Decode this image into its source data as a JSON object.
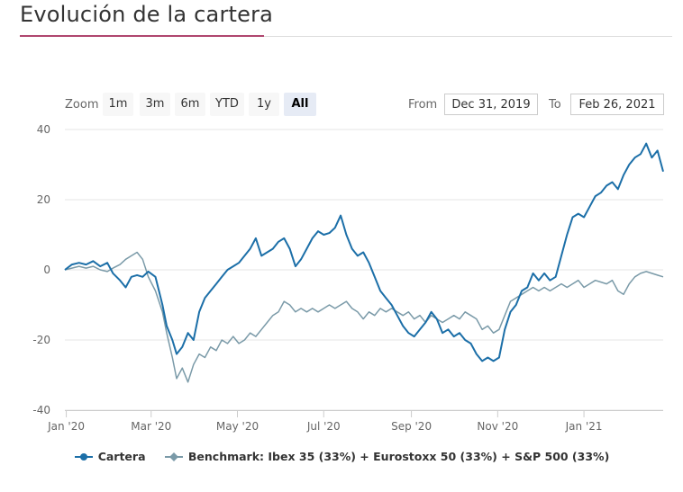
{
  "header": {
    "title": "Evolución de la cartera"
  },
  "range_selector": {
    "zoom_label": "Zoom",
    "buttons": [
      "1m",
      "3m",
      "6m",
      "YTD",
      "1y",
      "All"
    ],
    "active": "All",
    "from_label": "From",
    "from_value": "Dec 31, 2019",
    "to_label": "To",
    "to_value": "Feb 26, 2021"
  },
  "colors": {
    "cartera": "#1c6fa8",
    "benchmark": "#7a9aa8",
    "accent": "#b0466e",
    "grid": "#e6e6e6"
  },
  "chart_data": {
    "type": "line",
    "ylim": [
      -40,
      40
    ],
    "y_ticks": [
      -40,
      -20,
      0,
      20,
      40
    ],
    "x_ticks": [
      "Jan '20",
      "Mar '20",
      "May '20",
      "Jul '20",
      "Sep '20",
      "Nov '20",
      "Jan '21"
    ],
    "x_tick_dates": [
      "2020-01-01",
      "2020-03-01",
      "2020-05-01",
      "2020-07-01",
      "2020-09-01",
      "2020-11-01",
      "2021-01-01"
    ],
    "x_range": [
      "2019-12-31",
      "2021-02-26"
    ],
    "grid": true,
    "legend_position": "bottom",
    "series": [
      {
        "name": "Cartera",
        "points": [
          [
            "2019-12-31",
            0
          ],
          [
            "2020-01-05",
            1.5
          ],
          [
            "2020-01-10",
            2
          ],
          [
            "2020-01-15",
            1.5
          ],
          [
            "2020-01-20",
            2.5
          ],
          [
            "2020-01-25",
            1
          ],
          [
            "2020-01-30",
            2
          ],
          [
            "2020-02-03",
            -1
          ],
          [
            "2020-02-08",
            -3
          ],
          [
            "2020-02-12",
            -5
          ],
          [
            "2020-02-16",
            -2
          ],
          [
            "2020-02-20",
            -1.5
          ],
          [
            "2020-02-24",
            -2
          ],
          [
            "2020-02-28",
            -0.5
          ],
          [
            "2020-03-04",
            -2
          ],
          [
            "2020-03-09",
            -10
          ],
          [
            "2020-03-12",
            -16
          ],
          [
            "2020-03-16",
            -20
          ],
          [
            "2020-03-19",
            -24
          ],
          [
            "2020-03-23",
            -22
          ],
          [
            "2020-03-27",
            -18
          ],
          [
            "2020-03-31",
            -20
          ],
          [
            "2020-04-04",
            -12
          ],
          [
            "2020-04-08",
            -8
          ],
          [
            "2020-04-12",
            -6
          ],
          [
            "2020-04-16",
            -4
          ],
          [
            "2020-04-20",
            -2
          ],
          [
            "2020-04-24",
            0
          ],
          [
            "2020-04-28",
            1
          ],
          [
            "2020-05-02",
            2
          ],
          [
            "2020-05-06",
            4
          ],
          [
            "2020-05-10",
            6
          ],
          [
            "2020-05-14",
            9
          ],
          [
            "2020-05-18",
            4
          ],
          [
            "2020-05-22",
            5
          ],
          [
            "2020-05-26",
            6
          ],
          [
            "2020-05-30",
            8
          ],
          [
            "2020-06-03",
            9
          ],
          [
            "2020-06-07",
            6
          ],
          [
            "2020-06-11",
            1
          ],
          [
            "2020-06-15",
            3
          ],
          [
            "2020-06-19",
            6
          ],
          [
            "2020-06-23",
            9
          ],
          [
            "2020-06-27",
            11
          ],
          [
            "2020-07-01",
            10
          ],
          [
            "2020-07-05",
            10.5
          ],
          [
            "2020-07-09",
            12
          ],
          [
            "2020-07-13",
            15.5
          ],
          [
            "2020-07-17",
            10
          ],
          [
            "2020-07-21",
            6
          ],
          [
            "2020-07-25",
            4
          ],
          [
            "2020-07-29",
            5
          ],
          [
            "2020-08-02",
            2
          ],
          [
            "2020-08-06",
            -2
          ],
          [
            "2020-08-10",
            -6
          ],
          [
            "2020-08-14",
            -8
          ],
          [
            "2020-08-18",
            -10
          ],
          [
            "2020-08-22",
            -13
          ],
          [
            "2020-08-26",
            -16
          ],
          [
            "2020-08-30",
            -18
          ],
          [
            "2020-09-03",
            -19
          ],
          [
            "2020-09-07",
            -17
          ],
          [
            "2020-09-11",
            -15
          ],
          [
            "2020-09-15",
            -12
          ],
          [
            "2020-09-19",
            -14
          ],
          [
            "2020-09-23",
            -18
          ],
          [
            "2020-09-27",
            -17
          ],
          [
            "2020-10-01",
            -19
          ],
          [
            "2020-10-05",
            -18
          ],
          [
            "2020-10-09",
            -20
          ],
          [
            "2020-10-13",
            -21
          ],
          [
            "2020-10-17",
            -24
          ],
          [
            "2020-10-21",
            -26
          ],
          [
            "2020-10-25",
            -25
          ],
          [
            "2020-10-29",
            -26
          ],
          [
            "2020-11-02",
            -25
          ],
          [
            "2020-11-06",
            -17
          ],
          [
            "2020-11-10",
            -12
          ],
          [
            "2020-11-14",
            -10
          ],
          [
            "2020-11-18",
            -6
          ],
          [
            "2020-11-22",
            -5
          ],
          [
            "2020-11-26",
            -1
          ],
          [
            "2020-11-30",
            -3
          ],
          [
            "2020-12-04",
            -1
          ],
          [
            "2020-12-08",
            -3
          ],
          [
            "2020-12-12",
            -2
          ],
          [
            "2020-12-16",
            4
          ],
          [
            "2020-12-20",
            10
          ],
          [
            "2020-12-24",
            15
          ],
          [
            "2020-12-28",
            16
          ],
          [
            "2021-01-01",
            15
          ],
          [
            "2021-01-05",
            18
          ],
          [
            "2021-01-09",
            21
          ],
          [
            "2021-01-13",
            22
          ],
          [
            "2021-01-17",
            24
          ],
          [
            "2021-01-21",
            25
          ],
          [
            "2021-01-25",
            23
          ],
          [
            "2021-01-29",
            27
          ],
          [
            "2021-02-02",
            30
          ],
          [
            "2021-02-06",
            32
          ],
          [
            "2021-02-10",
            33
          ],
          [
            "2021-02-14",
            36
          ],
          [
            "2021-02-18",
            32
          ],
          [
            "2021-02-22",
            34
          ],
          [
            "2021-02-26",
            28
          ]
        ]
      },
      {
        "name": "Benchmark: Ibex 35 (33%) + Eurostoxx 50 (33%) + S&P 500 (33%)",
        "points": [
          [
            "2019-12-31",
            0
          ],
          [
            "2020-01-05",
            0.5
          ],
          [
            "2020-01-10",
            1
          ],
          [
            "2020-01-15",
            0.5
          ],
          [
            "2020-01-20",
            1
          ],
          [
            "2020-01-25",
            0
          ],
          [
            "2020-01-30",
            -0.5
          ],
          [
            "2020-02-03",
            0.5
          ],
          [
            "2020-02-08",
            1.5
          ],
          [
            "2020-02-12",
            3
          ],
          [
            "2020-02-16",
            4
          ],
          [
            "2020-02-20",
            5
          ],
          [
            "2020-02-24",
            3
          ],
          [
            "2020-02-28",
            -2
          ],
          [
            "2020-03-04",
            -6
          ],
          [
            "2020-03-09",
            -12
          ],
          [
            "2020-03-12",
            -18
          ],
          [
            "2020-03-16",
            -25
          ],
          [
            "2020-03-19",
            -31
          ],
          [
            "2020-03-23",
            -28
          ],
          [
            "2020-03-27",
            -32
          ],
          [
            "2020-03-31",
            -27
          ],
          [
            "2020-04-04",
            -24
          ],
          [
            "2020-04-08",
            -25
          ],
          [
            "2020-04-12",
            -22
          ],
          [
            "2020-04-16",
            -23
          ],
          [
            "2020-04-20",
            -20
          ],
          [
            "2020-04-24",
            -21
          ],
          [
            "2020-04-28",
            -19
          ],
          [
            "2020-05-02",
            -21
          ],
          [
            "2020-05-06",
            -20
          ],
          [
            "2020-05-10",
            -18
          ],
          [
            "2020-05-14",
            -19
          ],
          [
            "2020-05-18",
            -17
          ],
          [
            "2020-05-22",
            -15
          ],
          [
            "2020-05-26",
            -13
          ],
          [
            "2020-05-30",
            -12
          ],
          [
            "2020-06-03",
            -9
          ],
          [
            "2020-06-07",
            -10
          ],
          [
            "2020-06-11",
            -12
          ],
          [
            "2020-06-15",
            -11
          ],
          [
            "2020-06-19",
            -12
          ],
          [
            "2020-06-23",
            -11
          ],
          [
            "2020-06-27",
            -12
          ],
          [
            "2020-07-01",
            -11
          ],
          [
            "2020-07-05",
            -10
          ],
          [
            "2020-07-09",
            -11
          ],
          [
            "2020-07-13",
            -10
          ],
          [
            "2020-07-17",
            -9
          ],
          [
            "2020-07-21",
            -11
          ],
          [
            "2020-07-25",
            -12
          ],
          [
            "2020-07-29",
            -14
          ],
          [
            "2020-08-02",
            -12
          ],
          [
            "2020-08-06",
            -13
          ],
          [
            "2020-08-10",
            -11
          ],
          [
            "2020-08-14",
            -12
          ],
          [
            "2020-08-18",
            -11
          ],
          [
            "2020-08-22",
            -12
          ],
          [
            "2020-08-26",
            -13
          ],
          [
            "2020-08-30",
            -12
          ],
          [
            "2020-09-03",
            -14
          ],
          [
            "2020-09-07",
            -13
          ],
          [
            "2020-09-11",
            -15
          ],
          [
            "2020-09-15",
            -13
          ],
          [
            "2020-09-19",
            -14
          ],
          [
            "2020-09-23",
            -15
          ],
          [
            "2020-09-27",
            -14
          ],
          [
            "2020-10-01",
            -13
          ],
          [
            "2020-10-05",
            -14
          ],
          [
            "2020-10-09",
            -12
          ],
          [
            "2020-10-13",
            -13
          ],
          [
            "2020-10-17",
            -14
          ],
          [
            "2020-10-21",
            -17
          ],
          [
            "2020-10-25",
            -16
          ],
          [
            "2020-10-29",
            -18
          ],
          [
            "2020-11-02",
            -17
          ],
          [
            "2020-11-06",
            -13
          ],
          [
            "2020-11-10",
            -9
          ],
          [
            "2020-11-14",
            -8
          ],
          [
            "2020-11-18",
            -7
          ],
          [
            "2020-11-22",
            -6
          ],
          [
            "2020-11-26",
            -5
          ],
          [
            "2020-11-30",
            -6
          ],
          [
            "2020-12-04",
            -5
          ],
          [
            "2020-12-08",
            -6
          ],
          [
            "2020-12-12",
            -5
          ],
          [
            "2020-12-16",
            -4
          ],
          [
            "2020-12-20",
            -5
          ],
          [
            "2020-12-24",
            -4
          ],
          [
            "2020-12-28",
            -3
          ],
          [
            "2021-01-01",
            -5
          ],
          [
            "2021-01-05",
            -4
          ],
          [
            "2021-01-09",
            -3
          ],
          [
            "2021-01-13",
            -3.5
          ],
          [
            "2021-01-17",
            -4
          ],
          [
            "2021-01-21",
            -3
          ],
          [
            "2021-01-25",
            -6
          ],
          [
            "2021-01-29",
            -7
          ],
          [
            "2021-02-02",
            -4
          ],
          [
            "2021-02-06",
            -2
          ],
          [
            "2021-02-10",
            -1
          ],
          [
            "2021-02-14",
            -0.5
          ],
          [
            "2021-02-18",
            -1
          ],
          [
            "2021-02-22",
            -1.5
          ],
          [
            "2021-02-26",
            -2
          ]
        ]
      }
    ]
  }
}
